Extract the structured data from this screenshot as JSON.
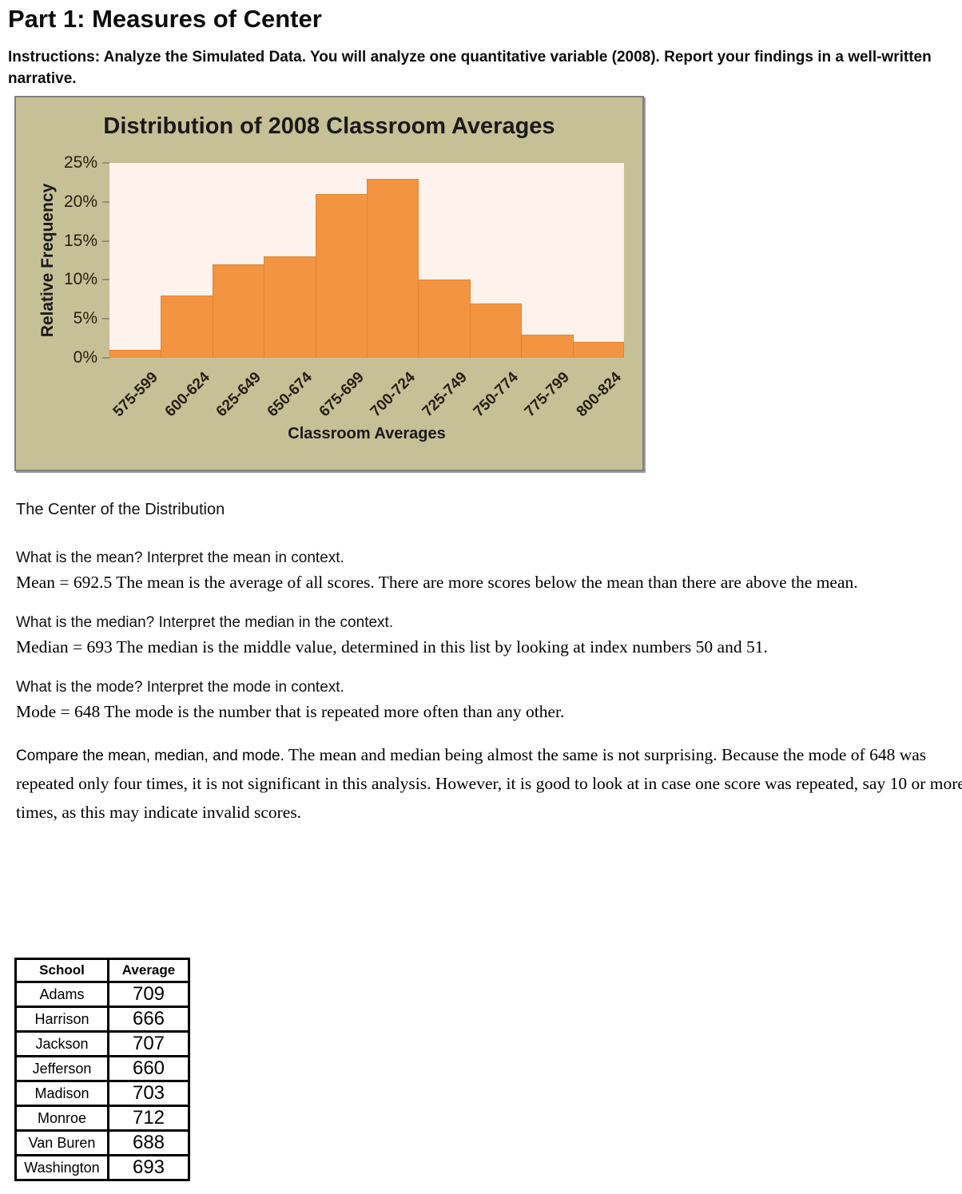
{
  "page": {
    "title": "Part 1: Measures of Center",
    "instructions": "Instructions: Analyze the Simulated Data. You will analyze one quantitative variable (2008). Report your findings in a well-written narrative."
  },
  "chart_data": {
    "type": "bar",
    "title": "Distribution of 2008 Classroom Averages",
    "xlabel": "Classroom Averages",
    "ylabel": "Relative Frequency",
    "categories": [
      "575-599",
      "600-624",
      "625-649",
      "650-674",
      "675-699",
      "700-724",
      "725-749",
      "750-774",
      "775-799",
      "800-824"
    ],
    "values": [
      1,
      8,
      12,
      13,
      21,
      23,
      10,
      7,
      3,
      2
    ],
    "unit": "%",
    "ylim": [
      0,
      25
    ],
    "ytick_step": 5,
    "yticks": [
      "0%",
      "5%",
      "10%",
      "15%",
      "20%",
      "25%"
    ],
    "grid": false,
    "legend": "none",
    "colors": {
      "bar_fill": "#f29440",
      "bar_border": "#dd8637",
      "chart_background": "#c6c096",
      "plot_background": "#fdf2ec",
      "chart_border": "#7f7f7f"
    }
  },
  "sections": {
    "center_heading": "The Center of the Distribution",
    "mean_question": "What is the mean? Interpret the mean in context.",
    "mean_answer": "Mean = 692.5  The mean is the average of all scores.  There are more scores below the mean than there are above the mean.",
    "median_question": "What is the median? Interpret the median in the context.",
    "median_answer": "Median = 693  The median is the middle value, determined in this list by looking at index numbers 50 and 51.",
    "mode_question": "What is the mode? Interpret the mode in context.",
    "mode_answer": "Mode = 648  The mode is the number that is repeated more often than any other.",
    "compare_lead": "Compare the mean, median, and mode.",
    "compare_body": " The mean and median being almost the same is not surprising. Because the mode of 648 was repeated only four times, it is not significant in this analysis. However, it is good to look at in case one score was repeated, say 10 or more times, as this may indicate invalid scores."
  },
  "table": {
    "headers": [
      "School",
      "Average"
    ],
    "rows": [
      {
        "school": "Adams",
        "average": "709"
      },
      {
        "school": "Harrison",
        "average": "666"
      },
      {
        "school": "Jackson",
        "average": "707"
      },
      {
        "school": "Jefferson",
        "average": "660"
      },
      {
        "school": "Madison",
        "average": "703"
      },
      {
        "school": "Monroe",
        "average": "712"
      },
      {
        "school": "Van Buren",
        "average": "688"
      },
      {
        "school": "Washington",
        "average": "693"
      }
    ]
  }
}
